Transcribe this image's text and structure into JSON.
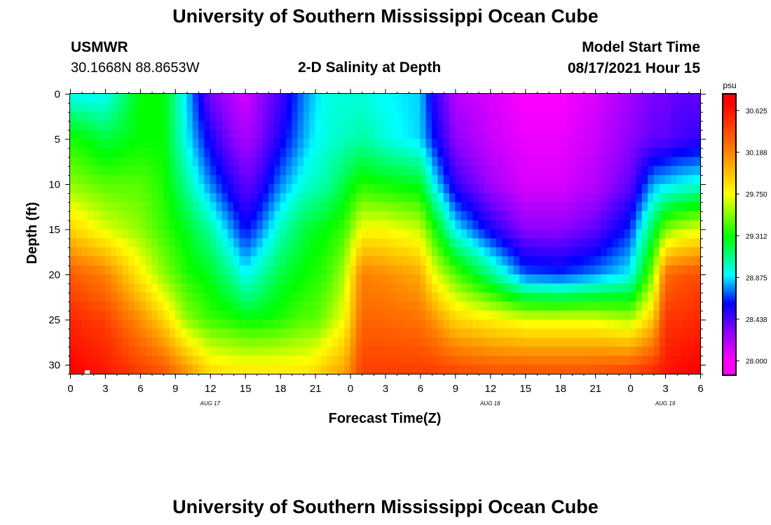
{
  "page": {
    "title_top": "University of Southern Mississippi Ocean Cube",
    "title_bottom": "University of Southern Mississippi Ocean Cube",
    "station": "USMWR",
    "coordinates": "30.1668N  88.8653W",
    "subtitle": "2-D Salinity at Depth",
    "model_start_label": "Model Start Time",
    "model_start_value": "08/17/2021 Hour 15"
  },
  "chart_data": {
    "type": "heatmap",
    "title": "2-D Salinity at Depth",
    "xlabel": "Forecast Time(Z)",
    "ylabel": "Depth (ft)",
    "x_unit": "hours from 08/17/2021 00Z",
    "xlim": [
      0,
      54
    ],
    "ylim": [
      0,
      31
    ],
    "y_inverted": true,
    "x_tick_values": [
      0,
      3,
      6,
      9,
      12,
      15,
      18,
      21,
      24,
      27,
      30,
      33,
      36,
      39,
      42,
      45,
      48,
      51,
      54
    ],
    "x_tick_labels": [
      "0",
      "3",
      "6",
      "9",
      "12",
      "15",
      "18",
      "21",
      "0",
      "3",
      "6",
      "9",
      "12",
      "15",
      "18",
      "21",
      "0",
      "3",
      "6"
    ],
    "date_labels": [
      {
        "x": 12,
        "text": "AUG 17"
      },
      {
        "x": 36,
        "text": "AUG 18"
      },
      {
        "x": 51,
        "text": "AUG 19"
      }
    ],
    "y_tick_values": [
      0,
      5,
      10,
      15,
      20,
      25,
      30
    ],
    "y_tick_labels": [
      "0",
      "5",
      "10",
      "15",
      "20",
      "25",
      "30"
    ],
    "colorbar": {
      "unit": "psu",
      "min": 27.85,
      "max": 30.8,
      "ticks": [
        "30.625",
        "30.188",
        "29.750",
        "29.312",
        "28.875",
        "28.438",
        "28.000"
      ],
      "tick_values": [
        30.625,
        30.188,
        29.75,
        29.312,
        28.875,
        28.438,
        28.0
      ],
      "stops": [
        {
          "value": 28.0,
          "color": "#ff00ff"
        },
        {
          "value": 28.3,
          "color": "#9000ff"
        },
        {
          "value": 28.6,
          "color": "#0000ff"
        },
        {
          "value": 28.9,
          "color": "#00ffff"
        },
        {
          "value": 29.3,
          "color": "#00ff00"
        },
        {
          "value": 29.75,
          "color": "#ffff00"
        },
        {
          "value": 30.2,
          "color": "#ff8000"
        },
        {
          "value": 30.7,
          "color": "#ff0000"
        }
      ]
    },
    "depth_profiles": [
      0,
      5,
      10,
      15,
      20,
      25,
      30.5
    ],
    "time_points": [
      0,
      3,
      6,
      8,
      10,
      12,
      14,
      15,
      16,
      18,
      20,
      21,
      22,
      23.5,
      25,
      27,
      30,
      31,
      33,
      36,
      39,
      42,
      45,
      48,
      50,
      51,
      52,
      54
    ],
    "salinity_values": [
      [
        28.9,
        29.35,
        29.55,
        29.9,
        30.35,
        30.55,
        30.7
      ],
      [
        28.9,
        29.2,
        29.45,
        29.7,
        30.2,
        30.45,
        30.6
      ],
      [
        29.3,
        29.3,
        29.45,
        29.55,
        29.8,
        30.15,
        30.45
      ],
      [
        29.3,
        29.3,
        29.35,
        29.4,
        29.55,
        29.9,
        30.35
      ],
      [
        28.85,
        28.9,
        29.05,
        29.25,
        29.35,
        29.55,
        30.1
      ],
      [
        28.35,
        28.55,
        28.75,
        29.05,
        29.25,
        29.4,
        29.85
      ],
      [
        28.2,
        28.3,
        28.5,
        28.75,
        29.05,
        29.35,
        29.8
      ],
      [
        28.1,
        28.25,
        28.4,
        28.6,
        28.9,
        29.3,
        29.8
      ],
      [
        28.25,
        28.3,
        28.45,
        28.7,
        29.0,
        29.3,
        29.8
      ],
      [
        28.45,
        28.55,
        28.75,
        29.0,
        29.2,
        29.35,
        29.8
      ],
      [
        28.75,
        28.8,
        28.95,
        29.2,
        29.3,
        29.45,
        29.8
      ],
      [
        28.85,
        28.9,
        29.0,
        29.25,
        29.35,
        29.45,
        29.85
      ],
      [
        28.95,
        28.95,
        29.05,
        29.3,
        29.4,
        29.55,
        29.95
      ],
      [
        28.95,
        29.0,
        29.2,
        29.4,
        29.6,
        29.75,
        30.05
      ],
      [
        28.95,
        29.05,
        29.35,
        29.75,
        30.2,
        30.3,
        30.45
      ],
      [
        28.9,
        28.95,
        29.3,
        29.75,
        30.15,
        30.3,
        30.45
      ],
      [
        28.85,
        28.85,
        29.25,
        29.65,
        30.05,
        30.25,
        30.45
      ],
      [
        28.55,
        28.65,
        28.95,
        29.4,
        29.75,
        30.15,
        30.45
      ],
      [
        28.2,
        28.3,
        28.5,
        28.9,
        29.45,
        29.9,
        30.4
      ],
      [
        28.1,
        28.15,
        28.25,
        28.55,
        29.1,
        29.8,
        30.35
      ],
      [
        28.0,
        28.05,
        28.1,
        28.3,
        28.7,
        29.7,
        30.35
      ],
      [
        28.0,
        28.05,
        28.1,
        28.3,
        28.65,
        29.7,
        30.35
      ],
      [
        28.1,
        28.15,
        28.2,
        28.4,
        28.75,
        29.7,
        30.35
      ],
      [
        28.25,
        28.3,
        28.4,
        28.65,
        28.9,
        29.6,
        30.4
      ],
      [
        28.35,
        28.4,
        28.8,
        29.2,
        29.55,
        29.95,
        30.5
      ],
      [
        28.35,
        28.4,
        28.85,
        29.5,
        30.25,
        30.5,
        30.6
      ],
      [
        28.4,
        28.45,
        28.9,
        29.6,
        30.35,
        30.5,
        30.65
      ],
      [
        28.4,
        28.5,
        28.95,
        29.7,
        30.4,
        30.55,
        30.7
      ]
    ]
  }
}
